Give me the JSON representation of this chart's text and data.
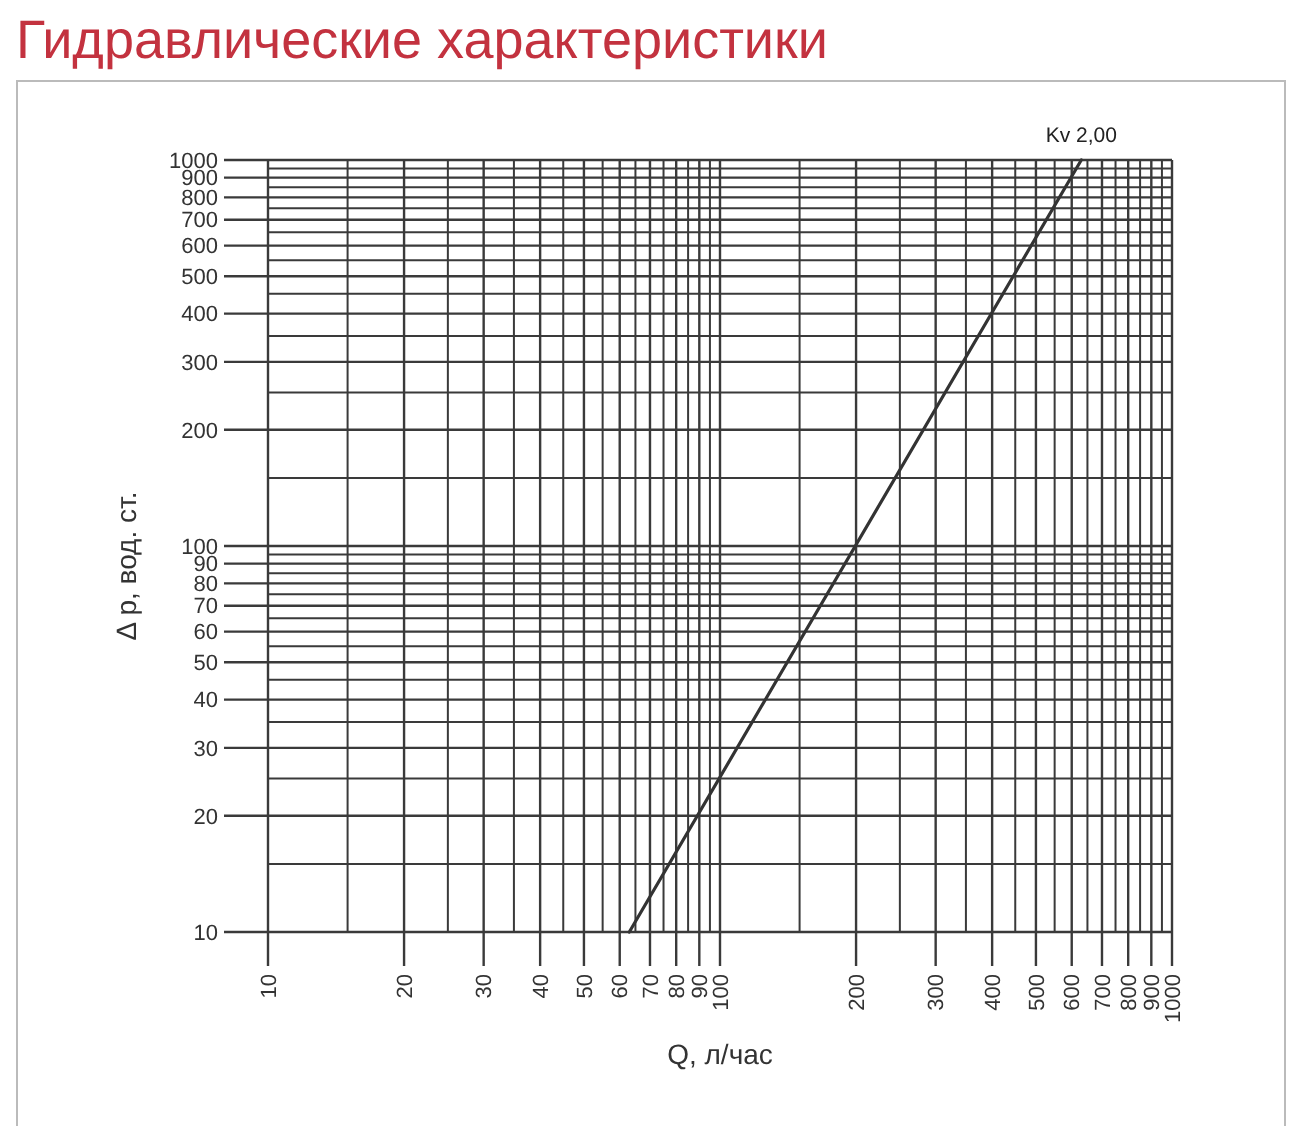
{
  "chart_data": {
    "type": "line",
    "title": "Гидравлические характеристики",
    "xlabel": "Q, л/час",
    "ylabel": "Δ p, вод. ст.",
    "log": "xy",
    "grid": true,
    "xlim": [
      10,
      1000
    ],
    "ylim": [
      10,
      1000
    ],
    "xticks": [
      10,
      {
        "value": 15,
        "label": null
      },
      20,
      {
        "value": 25,
        "label": null
      },
      30,
      {
        "value": 35,
        "label": null
      },
      40,
      {
        "value": 45,
        "label": null
      },
      50,
      {
        "value": 55,
        "label": null
      },
      60,
      {
        "value": 65,
        "label": null
      },
      70,
      {
        "value": 75,
        "label": null
      },
      80,
      {
        "value": 85,
        "label": null
      },
      90,
      {
        "value": 95,
        "label": null
      },
      100,
      {
        "value": 150,
        "label": null
      },
      200,
      {
        "value": 250,
        "label": null
      },
      300,
      {
        "value": 350,
        "label": null
      },
      400,
      {
        "value": 450,
        "label": null
      },
      500,
      {
        "value": 550,
        "label": null
      },
      600,
      {
        "value": 650,
        "label": null
      },
      700,
      {
        "value": 750,
        "label": null
      },
      800,
      {
        "value": 850,
        "label": null
      },
      900,
      {
        "value": 950,
        "label": null
      },
      1000
    ],
    "yticks": [
      10,
      {
        "value": 15,
        "label": null
      },
      20,
      {
        "value": 25,
        "label": null
      },
      30,
      {
        "value": 35,
        "label": null
      },
      40,
      {
        "value": 45,
        "label": null
      },
      50,
      {
        "value": 55,
        "label": null
      },
      60,
      {
        "value": 65,
        "label": null
      },
      70,
      {
        "value": 75,
        "label": null
      },
      80,
      {
        "value": 85,
        "label": null
      },
      90,
      {
        "value": 95,
        "label": null
      },
      100,
      {
        "value": 150,
        "label": null
      },
      200,
      {
        "value": 250,
        "label": null
      },
      300,
      {
        "value": 350,
        "label": null
      },
      400,
      {
        "value": 450,
        "label": null
      },
      500,
      {
        "value": 550,
        "label": null
      },
      600,
      {
        "value": 650,
        "label": null
      },
      700,
      {
        "value": 750,
        "label": null
      },
      800,
      {
        "value": 850,
        "label": null
      },
      900,
      {
        "value": 950,
        "label": null
      },
      1000
    ],
    "series": [
      {
        "name": "Kv 2,00",
        "color": "#333333",
        "x": [
          63,
          630
        ],
        "values": [
          10,
          1000
        ]
      }
    ]
  }
}
